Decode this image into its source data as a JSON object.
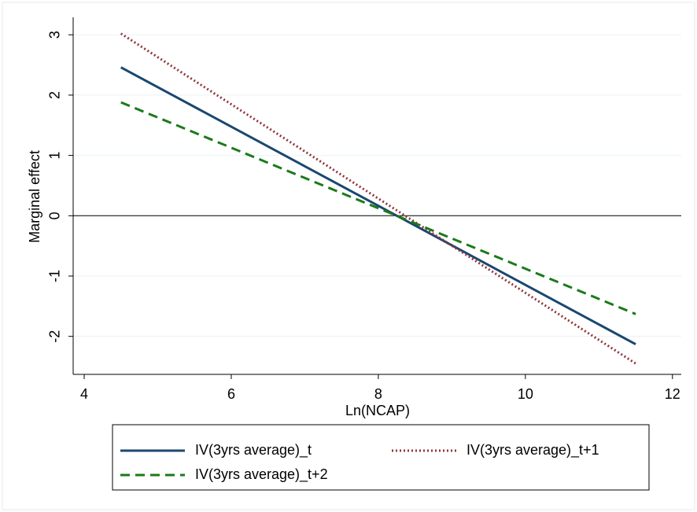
{
  "chart_data": {
    "type": "line",
    "x_label": "Ln(NCAP)",
    "y_label": "Marginal effect",
    "x": [
      4.5,
      11.5
    ],
    "series": [
      {
        "name": "IV(3yrs average)_t",
        "color": "#1a476f",
        "dash": "solid",
        "values": [
          2.46,
          -2.13
        ]
      },
      {
        "name": "IV(3yrs average)_t+1",
        "color": "#90353b",
        "dash": "dotted",
        "values": [
          3.02,
          -2.45
        ]
      },
      {
        "name": "IV(3yrs average)_t+2",
        "color": "#1b7a1b",
        "dash": "dashed",
        "values": [
          1.88,
          -1.63
        ]
      }
    ],
    "xlim": [
      3.85,
      12.12
    ],
    "ylim": [
      -2.63,
      3.29
    ],
    "xticks": [
      4,
      6,
      8,
      10,
      12
    ],
    "yticks": [
      -2,
      -1,
      0,
      1,
      2,
      3
    ],
    "reference_line": 0,
    "grid": true,
    "legend": "bottom"
  }
}
